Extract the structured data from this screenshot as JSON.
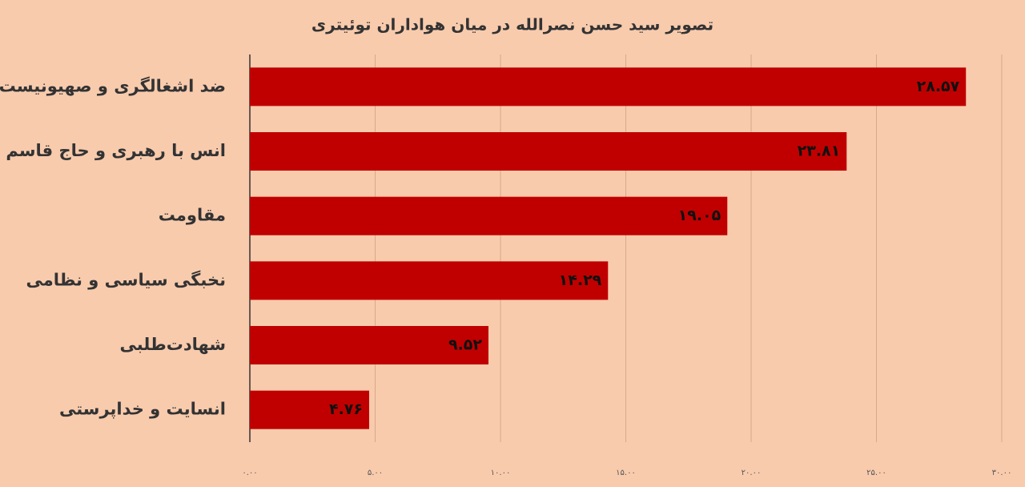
{
  "chart_data": {
    "type": "bar",
    "orientation": "horizontal",
    "title": "تصویر سید حسن نصرالله در میان هواداران توئیتری",
    "categories": [
      "ضد اشغالگری و صهیونیست",
      "انس با رهبری و حاج قاسم",
      "مقاومت",
      "نخبگی سیاسی و نظامی",
      "شهادت‌طلبی",
      "انسایت و خداپرستی"
    ],
    "values": [
      28.57,
      23.81,
      19.05,
      14.29,
      9.52,
      4.76
    ],
    "value_labels": [
      "۲۸.۵۷",
      "۲۳.۸۱",
      "۱۹.۰۵",
      "۱۴.۲۹",
      "۹.۵۲",
      "۴.۷۶"
    ],
    "color": "#c00000",
    "xlim": [
      0,
      30
    ],
    "xticks": [
      {
        "value": 0,
        "label": "۰.۰۰"
      },
      {
        "value": 5,
        "label": "۵.۰۰"
      },
      {
        "value": 10,
        "label": "۱۰.۰۰"
      },
      {
        "value": 15,
        "label": "۱۵.۰۰"
      },
      {
        "value": 20,
        "label": "۲۰.۰۰"
      },
      {
        "value": 25,
        "label": "۲۵.۰۰"
      },
      {
        "value": 30,
        "label": "۳۰.۰۰"
      }
    ],
    "grid": true
  }
}
